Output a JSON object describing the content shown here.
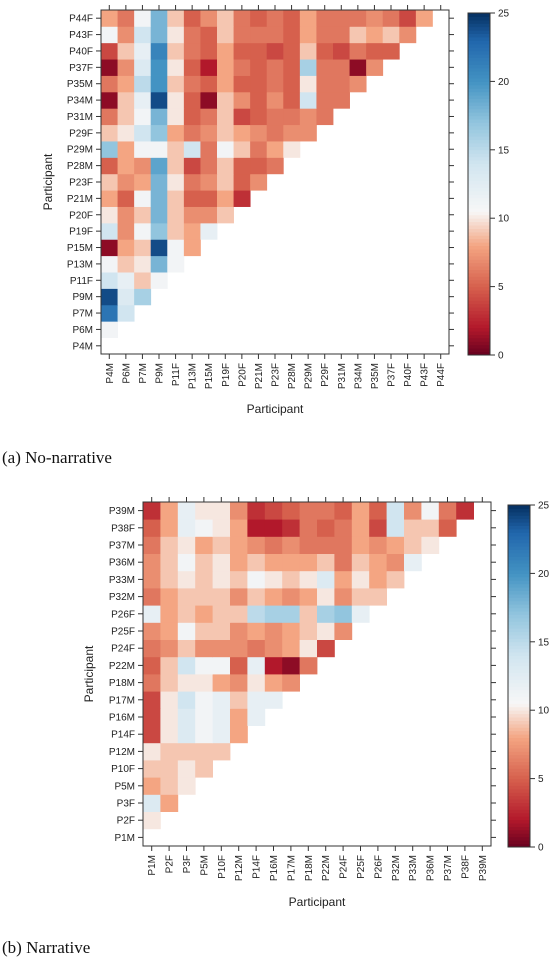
{
  "captions": {
    "a": "(a)    No-narrative",
    "b": "(b)    Narrative"
  },
  "chart_data": [
    {
      "type": "heatmap",
      "title": "",
      "xlabel": "Participant",
      "ylabel": "Participant",
      "color_range": [
        0,
        25
      ],
      "colorbar_ticks": [
        0,
        5,
        10,
        15,
        20,
        25
      ],
      "colorscale": [
        "#67001f",
        "#f7f7f7",
        "#053061"
      ],
      "categories": [
        "P4M",
        "P6M",
        "P7M",
        "P9M",
        "P11F",
        "P13M",
        "P15M",
        "P19F",
        "P20F",
        "P21M",
        "P23F",
        "P28M",
        "P29M",
        "P29F",
        "P31M",
        "P34M",
        "P35M",
        "P37F",
        "P40F",
        "P43F",
        "P44F"
      ],
      "values": [
        [],
        [
          11
        ],
        [
          22,
          14
        ],
        [
          24,
          13,
          16
        ],
        [
          14,
          12,
          9,
          11
        ],
        [
          11,
          9,
          10,
          18,
          11
        ],
        [
          1,
          8,
          9,
          24,
          11,
          8
        ],
        [
          14,
          7,
          11,
          17,
          9,
          8,
          12
        ],
        [
          10,
          7,
          9,
          18,
          9,
          7,
          7,
          9
        ],
        [
          8,
          5,
          11,
          18,
          9,
          5,
          5,
          8,
          3
        ],
        [
          9,
          7,
          8,
          18,
          10,
          6,
          7,
          9,
          5,
          7
        ],
        [
          5,
          8,
          7,
          19,
          9,
          4,
          6,
          9,
          5,
          5,
          6
        ],
        [
          17,
          8,
          11,
          11,
          9,
          14,
          6,
          11,
          9,
          6,
          8,
          10
        ],
        [
          9,
          10,
          14,
          17,
          8,
          6,
          7,
          9,
          8,
          7,
          6,
          7,
          7
        ],
        [
          6,
          9,
          11,
          18,
          10,
          5,
          6,
          9,
          4,
          5,
          6,
          6,
          7,
          6
        ],
        [
          1,
          9,
          12,
          24,
          10,
          5,
          1,
          9,
          7,
          5,
          7,
          5,
          14,
          6,
          6
        ],
        [
          6,
          8,
          15,
          20,
          9,
          6,
          5,
          8,
          5,
          5,
          6,
          5,
          10,
          6,
          6,
          7
        ],
        [
          1,
          7,
          13,
          20,
          10,
          5,
          2,
          8,
          6,
          5,
          6,
          5,
          16,
          6,
          6,
          1,
          7
        ],
        [
          4,
          9,
          12,
          21,
          9,
          6,
          5,
          8,
          5,
          5,
          4,
          5,
          9,
          5,
          4,
          6,
          5,
          5
        ],
        [
          11,
          7,
          14,
          18,
          10,
          6,
          5,
          9,
          6,
          6,
          6,
          5,
          8,
          6,
          6,
          9,
          8,
          9,
          7
        ],
        [
          8,
          6,
          11,
          18,
          9,
          5,
          7,
          9,
          6,
          5,
          6,
          5,
          8,
          6,
          6,
          6,
          7,
          6,
          4,
          8
        ]
      ]
    },
    {
      "type": "heatmap",
      "title": "",
      "xlabel": "Participant",
      "ylabel": "Participant",
      "color_range": [
        0,
        25
      ],
      "colorbar_ticks": [
        0,
        5,
        10,
        15,
        20,
        25
      ],
      "colorscale": [
        "#67001f",
        "#f7f7f7",
        "#053061"
      ],
      "categories": [
        "P1M",
        "P2F",
        "P3F",
        "P5M",
        "P10F",
        "P12M",
        "P14F",
        "P16M",
        "P17M",
        "P18M",
        "P22M",
        "P24F",
        "P25F",
        "P26F",
        "P32M",
        "P33M",
        "P36M",
        "P37M",
        "P38F",
        "P39M"
      ],
      "values": [
        [],
        [
          10
        ],
        [
          13,
          8
        ],
        [
          8,
          9,
          10
        ],
        [
          9,
          9,
          10,
          9
        ],
        [
          10,
          9,
          9,
          9,
          9
        ],
        [
          4,
          10,
          13,
          11,
          12,
          8
        ],
        [
          4,
          10,
          13,
          11,
          12,
          8,
          12
        ],
        [
          4,
          10,
          14,
          11,
          12,
          9,
          12,
          12
        ],
        [
          6,
          9,
          10,
          10,
          8,
          7,
          10,
          8,
          7
        ],
        [
          5,
          9,
          14,
          11,
          11,
          5,
          12,
          2,
          1,
          6
        ],
        [
          6,
          7,
          9,
          7,
          7,
          7,
          6,
          7,
          8,
          10,
          4
        ],
        [
          7,
          8,
          11,
          9,
          9,
          7,
          8,
          7,
          8,
          9,
          10,
          7
        ],
        [
          12,
          8,
          9,
          8,
          9,
          9,
          15,
          16,
          16,
          9,
          16,
          17,
          12
        ],
        [
          6,
          8,
          9,
          9,
          9,
          7,
          9,
          8,
          7,
          8,
          10,
          7,
          9,
          9
        ],
        [
          7,
          9,
          10,
          9,
          10,
          9,
          11,
          10,
          9,
          10,
          13,
          8,
          10,
          8,
          9
        ],
        [
          7,
          9,
          11,
          9,
          10,
          8,
          9,
          8,
          8,
          8,
          9,
          6,
          9,
          8,
          7,
          12
        ],
        [
          6,
          9,
          10,
          8,
          9,
          8,
          7,
          6,
          7,
          6,
          6,
          6,
          8,
          7,
          8,
          9,
          10
        ],
        [
          5,
          8,
          12,
          11,
          10,
          8,
          2,
          2,
          3,
          6,
          5,
          6,
          8,
          4,
          14,
          9,
          9,
          5
        ],
        [
          3,
          8,
          12,
          10,
          10,
          7,
          3,
          4,
          5,
          6,
          6,
          5,
          8,
          5,
          14,
          7,
          11,
          6,
          3
        ]
      ]
    }
  ]
}
